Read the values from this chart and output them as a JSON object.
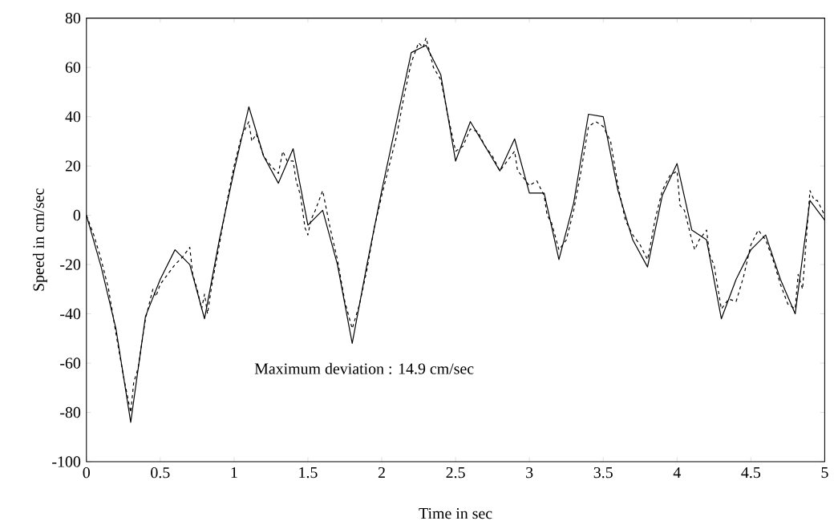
{
  "chart_data": {
    "type": "line",
    "xlabel": "Time in sec",
    "ylabel": "Speed in cm/sec",
    "annotations": [
      "Maximum deviation : 14.9 cm/sec"
    ],
    "xlim": [
      0,
      5
    ],
    "ylim": [
      -100,
      80
    ],
    "xticks": [
      0,
      0.5,
      1,
      1.5,
      2,
      2.5,
      3,
      3.5,
      4,
      4.5,
      5
    ],
    "yticks": [
      -100,
      -80,
      -60,
      -40,
      -20,
      0,
      20,
      40,
      60,
      80
    ],
    "grid": false,
    "marker": "none",
    "series": [
      {
        "color": "#000000",
        "line_style": "solid",
        "x": [
          0,
          0.1,
          0.2,
          0.3,
          0.4,
          0.5,
          0.6,
          0.7,
          0.8,
          0.9,
          1.0,
          1.1,
          1.2,
          1.3,
          1.4,
          1.5,
          1.6,
          1.7,
          1.8,
          1.9,
          2.0,
          2.1,
          2.2,
          2.3,
          2.4,
          2.5,
          2.6,
          2.7,
          2.8,
          2.9,
          3.0,
          3.1,
          3.2,
          3.3,
          3.4,
          3.5,
          3.6,
          3.7,
          3.8,
          3.9,
          4.0,
          4.1,
          4.2,
          4.3,
          4.4,
          4.5,
          4.6,
          4.7,
          4.8,
          4.9,
          5.0
        ],
        "values": [
          0,
          -21,
          -46,
          -84,
          -41,
          -26,
          -14,
          -20,
          -42,
          -10,
          18,
          44,
          24,
          13,
          27,
          -4,
          2,
          -20,
          -52,
          -20,
          10,
          38,
          66,
          69,
          57,
          22,
          38,
          28,
          18,
          31,
          9,
          9,
          -18,
          5,
          41,
          40,
          10,
          -10,
          -21,
          8,
          21,
          -6,
          -10,
          -42,
          -26,
          -14,
          -8,
          -26,
          -40,
          6,
          -2
        ]
      },
      {
        "color": "#000000",
        "line_style": "dashed",
        "x": [
          0,
          0.05,
          0.1,
          0.15,
          0.2,
          0.25,
          0.3,
          0.32,
          0.35,
          0.4,
          0.45,
          0.47,
          0.5,
          0.55,
          0.6,
          0.65,
          0.7,
          0.72,
          0.75,
          0.78,
          0.8,
          0.82,
          0.85,
          0.9,
          0.95,
          1.0,
          1.05,
          1.1,
          1.12,
          1.15,
          1.2,
          1.25,
          1.3,
          1.33,
          1.36,
          1.4,
          1.42,
          1.45,
          1.48,
          1.5,
          1.52,
          1.55,
          1.6,
          1.62,
          1.65,
          1.7,
          1.75,
          1.8,
          1.85,
          1.9,
          1.95,
          2.0,
          2.05,
          2.1,
          2.15,
          2.2,
          2.25,
          2.28,
          2.3,
          2.33,
          2.35,
          2.4,
          2.45,
          2.5,
          2.55,
          2.6,
          2.65,
          2.7,
          2.75,
          2.8,
          2.85,
          2.9,
          2.92,
          2.95,
          3.0,
          3.05,
          3.1,
          3.12,
          3.15,
          3.2,
          3.25,
          3.3,
          3.35,
          3.4,
          3.45,
          3.5,
          3.55,
          3.6,
          3.65,
          3.7,
          3.75,
          3.8,
          3.82,
          3.85,
          3.9,
          3.95,
          4.0,
          4.02,
          4.05,
          4.1,
          4.12,
          4.15,
          4.2,
          4.22,
          4.25,
          4.3,
          4.35,
          4.4,
          4.45,
          4.5,
          4.55,
          4.6,
          4.65,
          4.7,
          4.75,
          4.8,
          4.82,
          4.85,
          4.9,
          4.93,
          4.95,
          5.0
        ],
        "values": [
          0,
          -8,
          -18,
          -30,
          -48,
          -65,
          -80,
          -68,
          -62,
          -42,
          -30,
          -33,
          -28,
          -24,
          -20,
          -17,
          -13,
          -24,
          -30,
          -38,
          -32,
          -40,
          -28,
          -12,
          5,
          20,
          32,
          38,
          30,
          33,
          24,
          20,
          17,
          26,
          22,
          22,
          14,
          8,
          -5,
          -8,
          -2,
          2,
          10,
          4,
          -5,
          -18,
          -35,
          -46,
          -36,
          -22,
          -5,
          8,
          20,
          32,
          48,
          62,
          70,
          68,
          72,
          65,
          60,
          55,
          40,
          26,
          28,
          35,
          34,
          28,
          24,
          18,
          22,
          26,
          18,
          16,
          12,
          14,
          8,
          0,
          -3,
          -14,
          -10,
          2,
          18,
          36,
          38,
          36,
          30,
          12,
          -2,
          -8,
          -12,
          -18,
          -12,
          -2,
          10,
          16,
          18,
          4,
          2,
          -10,
          -14,
          -10,
          -6,
          -16,
          -20,
          -38,
          -34,
          -35,
          -25,
          -12,
          -6,
          -10,
          -18,
          -28,
          -36,
          -38,
          -24,
          -30,
          10,
          6,
          6,
          0
        ]
      }
    ]
  }
}
